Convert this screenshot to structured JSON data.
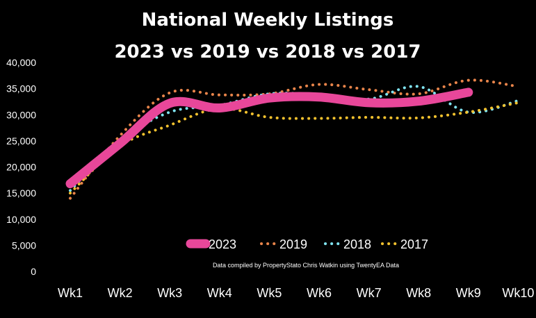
{
  "chart_data": {
    "type": "line",
    "title_line1": "National Weekly Listings",
    "title_line2": "2023 vs 2019 vs 2018 vs 2017",
    "xlabel": "",
    "ylabel": "",
    "categories": [
      "Wk1",
      "Wk2",
      "Wk3",
      "Wk4",
      "Wk5",
      "Wk6",
      "Wk7",
      "Wk8",
      "Wk9",
      "Wk10"
    ],
    "y_ticks": [
      "40,000",
      "35,000",
      "30,000",
      "25,000",
      "20,000",
      "15,000",
      "10,000",
      "5,000",
      "0"
    ],
    "ylim": [
      0,
      40000
    ],
    "grid": false,
    "legend_position": "bottom-inside",
    "series": [
      {
        "name": "2023",
        "color": "#e8479a",
        "style": "thick-solid",
        "values": [
          16800,
          24500,
          32200,
          31300,
          33200,
          33400,
          32300,
          32600,
          34300,
          null
        ]
      },
      {
        "name": "2019",
        "color": "#e8844a",
        "style": "dotted",
        "values": [
          14000,
          26000,
          34200,
          33800,
          34000,
          35800,
          34800,
          34000,
          36600,
          35400
        ]
      },
      {
        "name": "2018",
        "color": "#7fe3f0",
        "style": "dotted",
        "values": [
          15500,
          25000,
          30500,
          31800,
          34000,
          33800,
          33000,
          35400,
          30500,
          32700
        ]
      },
      {
        "name": "2017",
        "color": "#f2c12e",
        "style": "dotted",
        "values": [
          15000,
          24000,
          28000,
          31200,
          29500,
          29300,
          29500,
          29400,
          30500,
          32300
        ]
      }
    ],
    "note": "Data compiled by PropertyStato Chris Watkin using TwentyEA Data"
  }
}
